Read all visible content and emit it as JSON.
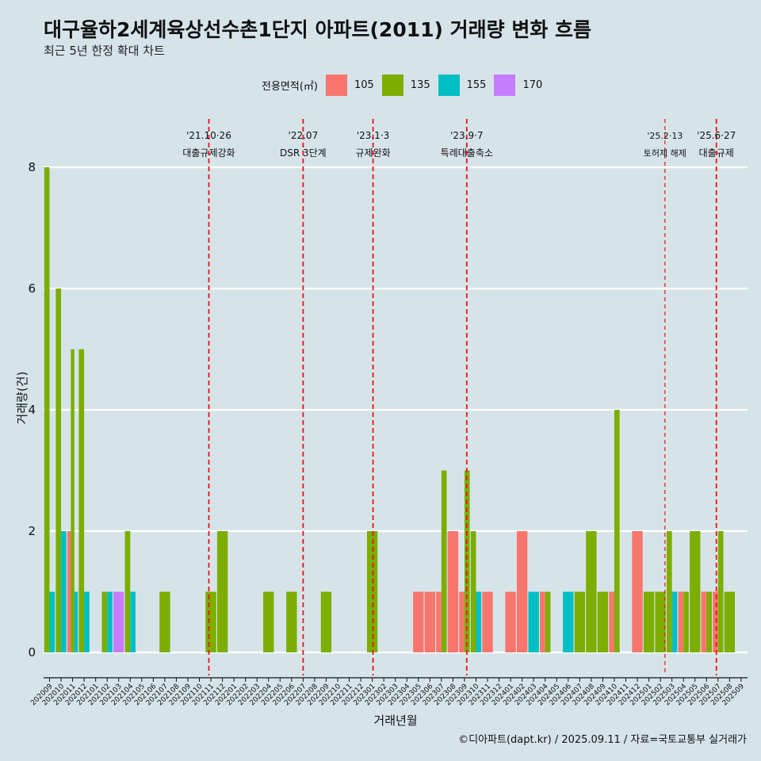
{
  "title": "대구율하2세계육상선수촌1단지 아파트(2011) 거래량 변화 흐름",
  "subtitle": "최근 5년 한정 확대 차트",
  "caption": "©디아파트(dapt.kr) / 2025.09.11 / 자료=국토교통부 실거래가",
  "legend": {
    "title": "전용면적(㎡)",
    "items": [
      {
        "label": "105",
        "color": "#f8766d"
      },
      {
        "label": "135",
        "color": "#7cae00"
      },
      {
        "label": "155",
        "color": "#00bfc4"
      },
      {
        "label": "170",
        "color": "#c77cff"
      }
    ]
  },
  "chart_data": {
    "type": "bar",
    "xlabel": "거래년월",
    "ylabel": "거래량(건)",
    "ylim": [
      0,
      8
    ],
    "yticks": [
      0,
      2,
      4,
      6,
      8
    ],
    "categories": [
      "202009",
      "202010",
      "202011",
      "202012",
      "202101",
      "202102",
      "202103",
      "202104",
      "202105",
      "202106",
      "202107",
      "202108",
      "202109",
      "202110",
      "202111",
      "202112",
      "202201",
      "202202",
      "202203",
      "202204",
      "202205",
      "202206",
      "202207",
      "202208",
      "202209",
      "202210",
      "202211",
      "202212",
      "202301",
      "202302",
      "202303",
      "202304",
      "202305",
      "202306",
      "202307",
      "202308",
      "202309",
      "202310",
      "202311",
      "202312",
      "202401",
      "202402",
      "202403",
      "202404",
      "202405",
      "202406",
      "202407",
      "202408",
      "202409",
      "202410",
      "202411",
      "202412",
      "202501",
      "202502",
      "202503",
      "202504",
      "202505",
      "202506",
      "202507",
      "202508",
      "202509"
    ],
    "bars": [
      {
        "month": "202009",
        "area": "135",
        "value": 8
      },
      {
        "month": "202009",
        "area": "155",
        "value": 1
      },
      {
        "month": "202010",
        "area": "135",
        "value": 6
      },
      {
        "month": "202010",
        "area": "155",
        "value": 2
      },
      {
        "month": "202011",
        "area": "105",
        "value": 2
      },
      {
        "month": "202011",
        "area": "135",
        "value": 5
      },
      {
        "month": "202011",
        "area": "155",
        "value": 1
      },
      {
        "month": "202012",
        "area": "135",
        "value": 5
      },
      {
        "month": "202012",
        "area": "155",
        "value": 1
      },
      {
        "month": "202102",
        "area": "135",
        "value": 1
      },
      {
        "month": "202102",
        "area": "155",
        "value": 1
      },
      {
        "month": "202103",
        "area": "170",
        "value": 1
      },
      {
        "month": "202104",
        "area": "135",
        "value": 2
      },
      {
        "month": "202104",
        "area": "155",
        "value": 1
      },
      {
        "month": "202107",
        "area": "135",
        "value": 1
      },
      {
        "month": "202111",
        "area": "135",
        "value": 1
      },
      {
        "month": "202112",
        "area": "135",
        "value": 2
      },
      {
        "month": "202204",
        "area": "135",
        "value": 1
      },
      {
        "month": "202206",
        "area": "135",
        "value": 1
      },
      {
        "month": "202209",
        "area": "135",
        "value": 1
      },
      {
        "month": "202301",
        "area": "135",
        "value": 2
      },
      {
        "month": "202305",
        "area": "105",
        "value": 1
      },
      {
        "month": "202306",
        "area": "105",
        "value": 1
      },
      {
        "month": "202307",
        "area": "105",
        "value": 1
      },
      {
        "month": "202307",
        "area": "135",
        "value": 3
      },
      {
        "month": "202308",
        "area": "105",
        "value": 2
      },
      {
        "month": "202309",
        "area": "105",
        "value": 1
      },
      {
        "month": "202309",
        "area": "135",
        "value": 3
      },
      {
        "month": "202310",
        "area": "135",
        "value": 2
      },
      {
        "month": "202310",
        "area": "155",
        "value": 1
      },
      {
        "month": "202311",
        "area": "105",
        "value": 1
      },
      {
        "month": "202401",
        "area": "105",
        "value": 1
      },
      {
        "month": "202402",
        "area": "105",
        "value": 2
      },
      {
        "month": "202403",
        "area": "155",
        "value": 1
      },
      {
        "month": "202404",
        "area": "105",
        "value": 1
      },
      {
        "month": "202404",
        "area": "135",
        "value": 1
      },
      {
        "month": "202406",
        "area": "155",
        "value": 1
      },
      {
        "month": "202407",
        "area": "135",
        "value": 1
      },
      {
        "month": "202408",
        "area": "135",
        "value": 2
      },
      {
        "month": "202409",
        "area": "135",
        "value": 1
      },
      {
        "month": "202410",
        "area": "105",
        "value": 1
      },
      {
        "month": "202410",
        "area": "135",
        "value": 4
      },
      {
        "month": "202412",
        "area": "105",
        "value": 2
      },
      {
        "month": "202501",
        "area": "135",
        "value": 1
      },
      {
        "month": "202502",
        "area": "135",
        "value": 1
      },
      {
        "month": "202503",
        "area": "135",
        "value": 2
      },
      {
        "month": "202503",
        "area": "155",
        "value": 1
      },
      {
        "month": "202504",
        "area": "105",
        "value": 1
      },
      {
        "month": "202504",
        "area": "135",
        "value": 1
      },
      {
        "month": "202505",
        "area": "135",
        "value": 2
      },
      {
        "month": "202506",
        "area": "105",
        "value": 1
      },
      {
        "month": "202506",
        "area": "135",
        "value": 1
      },
      {
        "month": "202507",
        "area": "105",
        "value": 1
      },
      {
        "month": "202507",
        "area": "135",
        "value": 2
      },
      {
        "month": "202508",
        "area": "135",
        "value": 1
      }
    ],
    "events": [
      {
        "date": "2021-10-26",
        "line1": "'21.10·26",
        "line2": "대출규제강화",
        "style": "bold"
      },
      {
        "date": "2022-07-01",
        "line1": "'22.07",
        "line2": "DSR 3단계",
        "style": "bold"
      },
      {
        "date": "2023-01-03",
        "line1": "'23.1·3",
        "line2": "규제완화",
        "style": "bold"
      },
      {
        "date": "2023-09-07",
        "line1": "'23.9·7",
        "line2": "특례대출축소",
        "style": "bold"
      },
      {
        "date": "2025-02-13",
        "line1": "'25.2·13",
        "line2": "토허제 해제",
        "style": "thin"
      },
      {
        "date": "2025-06-27",
        "line1": "'25.6·27",
        "line2": "대출규제",
        "style": "bold"
      }
    ]
  }
}
